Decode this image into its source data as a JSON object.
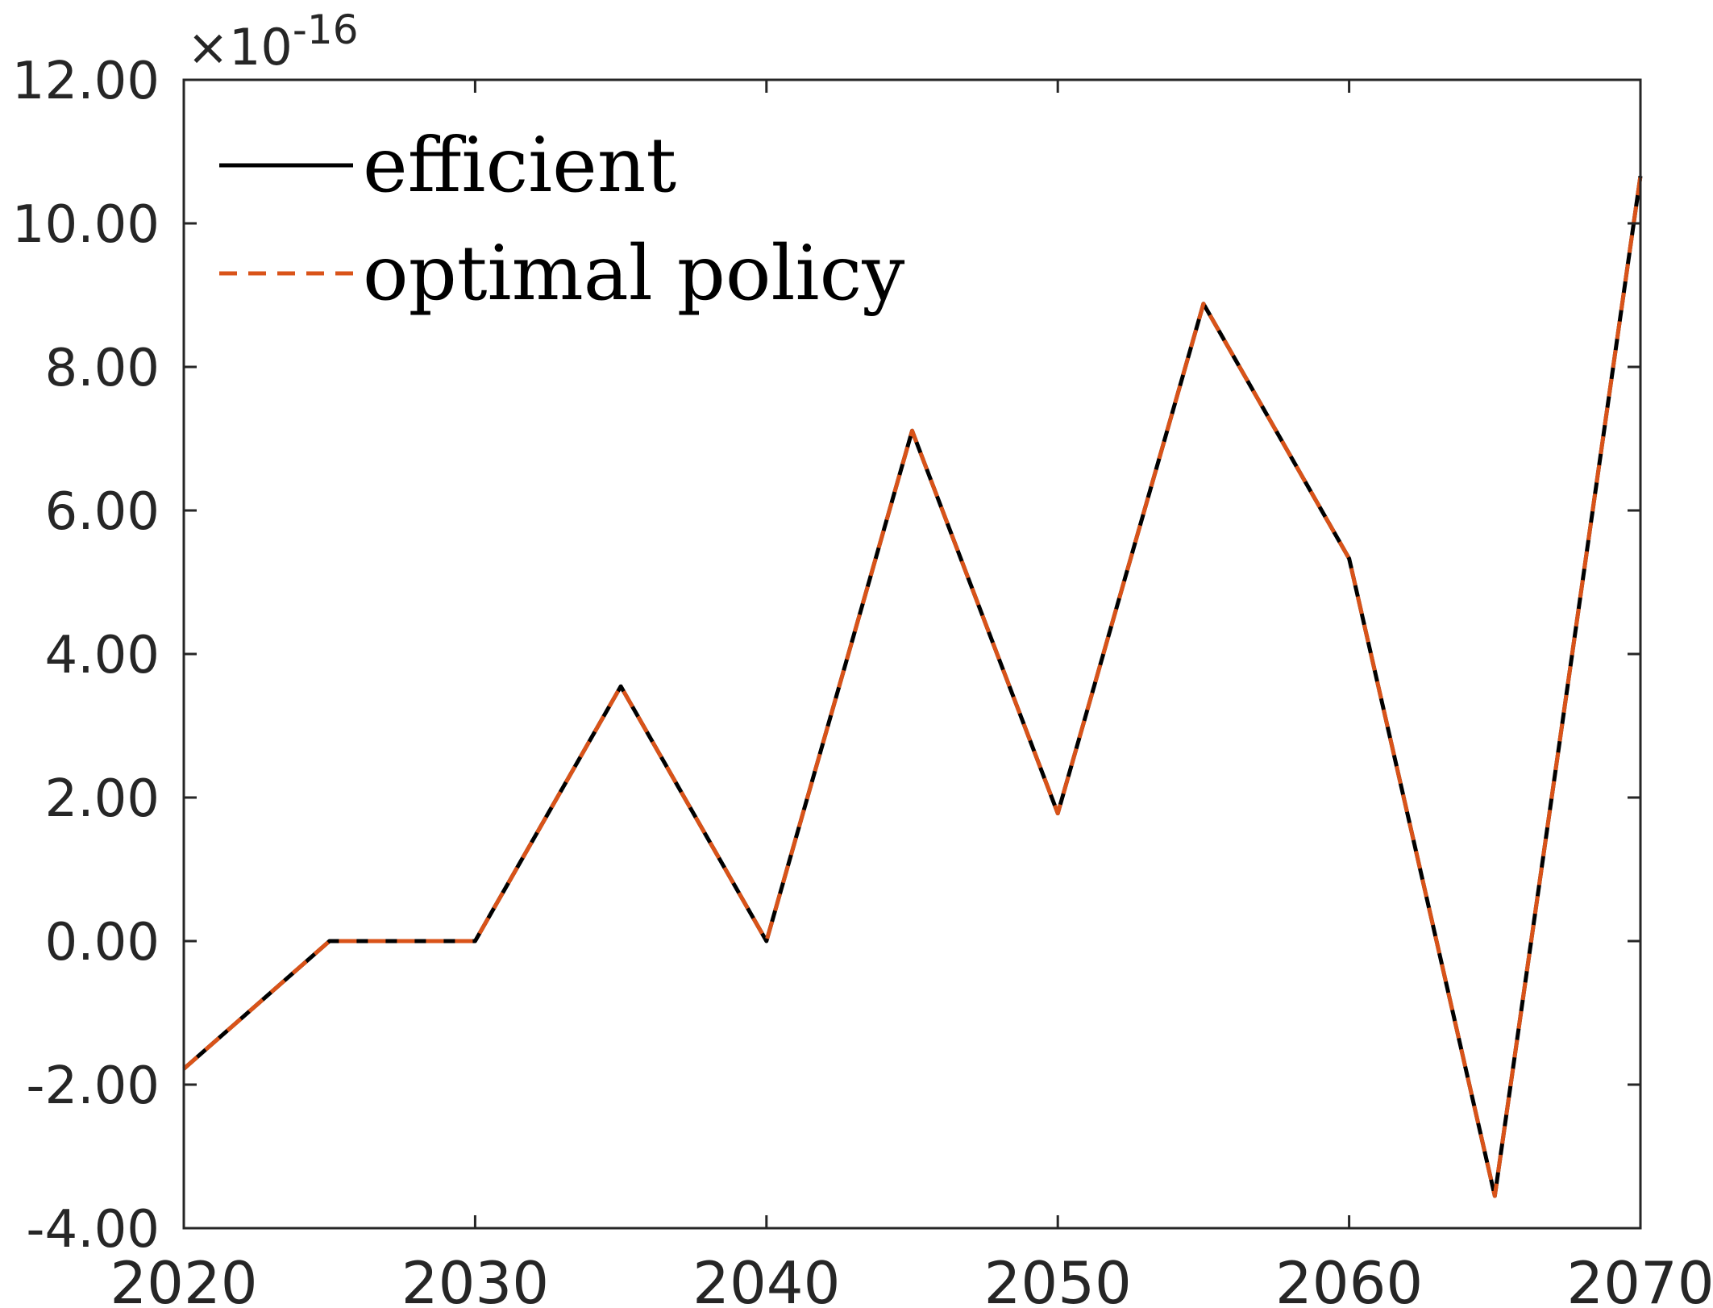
{
  "chart_data": {
    "type": "line",
    "title": "",
    "xlabel": "",
    "ylabel": "",
    "y_exponent_label": {
      "base": "×10",
      "power": "-16"
    },
    "x": [
      2020,
      2025,
      2030,
      2035,
      2040,
      2045,
      2050,
      2055,
      2060,
      2065,
      2070
    ],
    "xlim": [
      2020,
      2070
    ],
    "ylim": [
      -4.0,
      12.0
    ],
    "x_ticks": [
      2020,
      2030,
      2040,
      2050,
      2060,
      2070
    ],
    "x_tick_labels": [
      "2020",
      "2030",
      "2040",
      "2050",
      "2060",
      "2070"
    ],
    "y_ticks": [
      -4,
      -2,
      0,
      2,
      4,
      6,
      8,
      10,
      12
    ],
    "y_tick_labels": [
      "-4.00",
      "-2.00",
      "0.00",
      "2.00",
      "4.00",
      "6.00",
      "8.00",
      "10.00",
      "12.00"
    ],
    "grid": false,
    "legend_position": "top-left",
    "series": [
      {
        "name": "efficient",
        "color": "#000000",
        "style": "solid",
        "values": [
          -1.78,
          0.0,
          0.0,
          3.55,
          0.0,
          7.11,
          1.78,
          8.88,
          5.33,
          -3.55,
          10.66
        ]
      },
      {
        "name": "optimal policy",
        "color": "#d95319",
        "style": "dashed",
        "values": [
          -1.78,
          0.0,
          0.0,
          3.55,
          0.0,
          7.11,
          1.78,
          8.88,
          5.33,
          -3.55,
          10.66
        ]
      }
    ]
  }
}
